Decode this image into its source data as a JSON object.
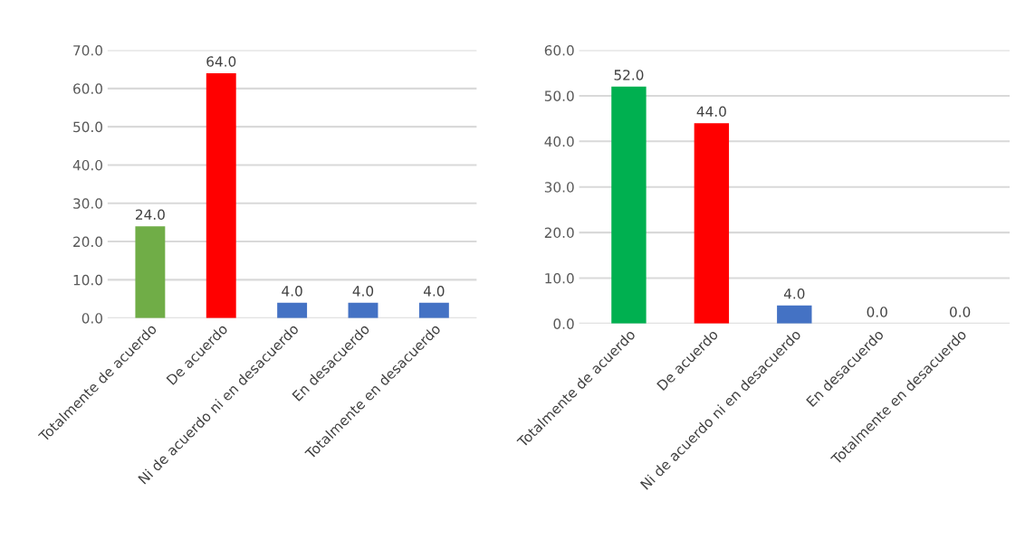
{
  "chart_data": [
    {
      "type": "bar",
      "categories": [
        "Totalmente de acuerdo",
        "De acuerdo",
        "Ni de acuerdo ni en desacuerdo",
        "En desacuerdo",
        "Totalmente en desacuerdo"
      ],
      "values": [
        24.0,
        64.0,
        4.0,
        4.0,
        4.0
      ],
      "colors": [
        "#70ad47",
        "#ff0000",
        "#4472c4",
        "#4472c4",
        "#4472c4"
      ],
      "value_labels": [
        "24.0",
        "64.0",
        "4.0",
        "4.0",
        "4.0"
      ],
      "ylim": [
        0,
        70
      ],
      "yticks": [
        {
          "value": 0,
          "label": "0.0"
        },
        {
          "value": 10,
          "label": "10.0"
        },
        {
          "value": 20,
          "label": "20.0"
        },
        {
          "value": 30,
          "label": "30.0"
        },
        {
          "value": 40,
          "label": "40.0"
        },
        {
          "value": 50,
          "label": "50.0"
        },
        {
          "value": 60,
          "label": "60.0"
        },
        {
          "value": 70,
          "label": "70.0"
        }
      ],
      "grid": "y"
    },
    {
      "type": "bar",
      "categories": [
        "Totalmente de acuerdo",
        "De acuerdo",
        "Ni de acuerdo ni en desacuerdo",
        "En desacuerdo",
        "Totalmente en desacuerdo"
      ],
      "values": [
        52.0,
        44.0,
        4.0,
        0.0,
        0.0
      ],
      "colors": [
        "#00b050",
        "#ff0000",
        "#4472c4",
        "#4472c4",
        "#4472c4"
      ],
      "value_labels": [
        "52.0",
        "44.0",
        "4.0",
        "0.0",
        "0.0"
      ],
      "ylim": [
        0,
        60
      ],
      "yticks": [
        {
          "value": 0,
          "label": "0.0"
        },
        {
          "value": 10,
          "label": "10.0"
        },
        {
          "value": 20,
          "label": "20.0"
        },
        {
          "value": 30,
          "label": "30.0"
        },
        {
          "value": 40,
          "label": "40.0"
        },
        {
          "value": 50,
          "label": "50.0"
        },
        {
          "value": 60,
          "label": "60.0"
        }
      ],
      "grid": "y"
    }
  ]
}
